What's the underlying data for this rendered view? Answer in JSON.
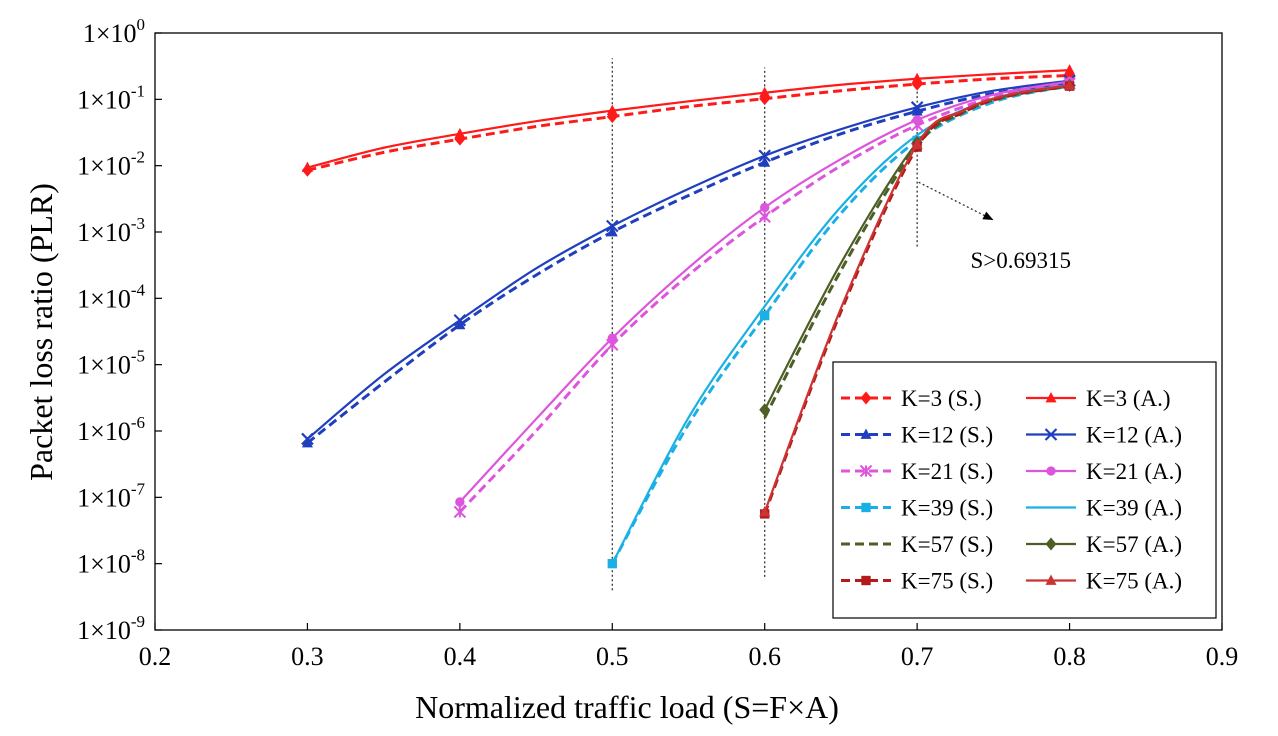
{
  "chart_data": {
    "type": "line",
    "title": "",
    "xlabel": "Normalized traffic load (S=F×A)",
    "ylabel": "Packet loss ratio (PLR)",
    "xlim": [
      0.2,
      0.9
    ],
    "ylim_log10": [
      -9,
      0
    ],
    "yscale": "log",
    "grid": false,
    "legend_position": "bottom-right",
    "x_ticks": [
      0.2,
      0.3,
      0.4,
      0.5,
      0.6,
      0.7,
      0.8,
      0.9
    ],
    "x_tick_labels": [
      "0.2",
      "0.3",
      "0.4",
      "0.5",
      "0.6",
      "0.7",
      "0.8",
      "0.9"
    ],
    "y_ticks": [
      {
        "exp": 0,
        "base": "1×10",
        "sup": "0"
      },
      {
        "exp": -1,
        "base": "1×10",
        "sup": "-1"
      },
      {
        "exp": -2,
        "base": "1×10",
        "sup": "-2"
      },
      {
        "exp": -3,
        "base": "1×10",
        "sup": "-3"
      },
      {
        "exp": -4,
        "base": "1×10",
        "sup": "-4"
      },
      {
        "exp": -5,
        "base": "1×10",
        "sup": "-5"
      },
      {
        "exp": -6,
        "base": "1×10",
        "sup": "-6"
      },
      {
        "exp": -7,
        "base": "1×10",
        "sup": "-7"
      },
      {
        "exp": -8,
        "base": "1×10",
        "sup": "-8"
      },
      {
        "exp": -9,
        "base": "1×10",
        "sup": "-9"
      }
    ],
    "vlines": [
      {
        "x": 0.5,
        "ylog_range": [
          -8.4,
          -0.38
        ]
      },
      {
        "x": 0.6,
        "ylog_range": [
          -8.2,
          -0.52
        ]
      },
      {
        "x": 0.7,
        "ylog_range": [
          -3.22,
          -0.68
        ]
      }
    ],
    "annotation": {
      "text": "S>0.69315",
      "from": [
        0.701,
        -2.25
      ],
      "to": [
        0.75,
        -2.82
      ],
      "text_at": [
        0.735,
        -3.42
      ]
    },
    "series": [
      {
        "name": "K=3 (S.)",
        "color": "#ff1a1a",
        "dash": true,
        "marker": "diamond",
        "x": [
          0.3,
          0.35,
          0.4,
          0.45,
          0.5,
          0.55,
          0.6,
          0.65,
          0.7,
          0.75,
          0.8
        ],
        "y": [
          -2.07,
          -1.8,
          -1.6,
          -1.41,
          -1.26,
          -1.11,
          -0.99,
          -0.87,
          -0.77,
          -0.69,
          -0.64
        ],
        "marker_x": [
          0.3,
          0.4,
          0.5,
          0.6,
          0.7,
          0.8
        ]
      },
      {
        "name": "K=3 (A.)",
        "color": "#ff1a1a",
        "dash": false,
        "marker": "triangle",
        "x": [
          0.3,
          0.35,
          0.4,
          0.45,
          0.5,
          0.55,
          0.6,
          0.65,
          0.7,
          0.75,
          0.8
        ],
        "y": [
          -2.03,
          -1.73,
          -1.52,
          -1.33,
          -1.17,
          -1.03,
          -0.9,
          -0.78,
          -0.69,
          -0.62,
          -0.56
        ],
        "marker_x": [
          0.3,
          0.4,
          0.5,
          0.6,
          0.7,
          0.8
        ]
      },
      {
        "name": "K=12 (S.)",
        "color": "#1f3fbf",
        "dash": true,
        "marker": "triangle",
        "x": [
          0.3,
          0.35,
          0.4,
          0.45,
          0.5,
          0.55,
          0.6,
          0.65,
          0.7,
          0.75,
          0.8
        ],
        "y": [
          -6.18,
          -5.27,
          -4.4,
          -3.65,
          -3.0,
          -2.45,
          -1.95,
          -1.52,
          -1.18,
          -0.91,
          -0.76
        ],
        "marker_x": [
          0.3,
          0.4,
          0.5,
          0.6,
          0.7,
          0.8
        ]
      },
      {
        "name": "K=12 (A.)",
        "color": "#1f3fbf",
        "dash": false,
        "marker": "x",
        "x": [
          0.3,
          0.35,
          0.4,
          0.45,
          0.5,
          0.55,
          0.6,
          0.65,
          0.7,
          0.75,
          0.8
        ],
        "y": [
          -6.12,
          -5.15,
          -4.33,
          -3.55,
          -2.91,
          -2.35,
          -1.85,
          -1.45,
          -1.12,
          -0.87,
          -0.72
        ],
        "marker_x": [
          0.3,
          0.4,
          0.5,
          0.6,
          0.7,
          0.8
        ]
      },
      {
        "name": "K=21 (S.)",
        "color": "#dd55dd",
        "dash": true,
        "marker": "asterisk",
        "x": [
          0.4,
          0.45,
          0.5,
          0.55,
          0.6,
          0.65,
          0.7,
          0.75,
          0.8
        ],
        "y": [
          -7.22,
          -6.0,
          -4.7,
          -3.65,
          -2.77,
          -2.0,
          -1.39,
          -0.97,
          -0.76
        ],
        "marker_x": [
          0.4,
          0.5,
          0.6,
          0.7,
          0.8
        ]
      },
      {
        "name": "K=21 (A.)",
        "color": "#dd55dd",
        "dash": false,
        "marker": "circle",
        "x": [
          0.4,
          0.45,
          0.5,
          0.55,
          0.6,
          0.65,
          0.7,
          0.75,
          0.8
        ],
        "y": [
          -7.07,
          -5.82,
          -4.6,
          -3.54,
          -2.63,
          -1.9,
          -1.31,
          -0.93,
          -0.73
        ],
        "marker_x": [
          0.4,
          0.5,
          0.6,
          0.7,
          0.8
        ]
      },
      {
        "name": "K=39 (S.)",
        "color": "#1ab0e6",
        "dash": true,
        "marker": "square",
        "x": [
          0.5,
          0.55,
          0.6,
          0.65,
          0.7,
          0.75,
          0.8
        ],
        "y": [
          -8.0,
          -5.9,
          -4.26,
          -2.72,
          -1.62,
          -1.04,
          -0.8
        ],
        "marker_x": [
          0.5,
          0.6,
          0.7,
          0.8
        ]
      },
      {
        "name": "K=39 (A.)",
        "color": "#1ab0e6",
        "dash": false,
        "marker": "none",
        "x": [
          0.5,
          0.55,
          0.6,
          0.65,
          0.7,
          0.75,
          0.8
        ],
        "y": [
          -8.0,
          -5.8,
          -4.12,
          -2.62,
          -1.54,
          -0.99,
          -0.78
        ],
        "marker_x": []
      },
      {
        "name": "K=57 (S.)",
        "color": "#4d5e26",
        "dash": true,
        "marker": "none",
        "x": [
          0.6,
          0.65,
          0.7,
          0.73,
          0.76,
          0.8
        ],
        "y": [
          -5.8,
          -3.58,
          -1.7,
          -1.2,
          -0.95,
          -0.8
        ],
        "marker_x": []
      },
      {
        "name": "K=57 (A.)",
        "color": "#4d5e26",
        "dash": false,
        "marker": "diamond",
        "x": [
          0.6,
          0.65,
          0.7,
          0.73,
          0.76,
          0.8
        ],
        "y": [
          -5.68,
          -3.47,
          -1.65,
          -1.17,
          -0.94,
          -0.79
        ],
        "marker_x": [
          0.6,
          0.7,
          0.8
        ]
      },
      {
        "name": "K=75 (S.)",
        "color": "#b31a1a",
        "dash": true,
        "marker": "square",
        "x": [
          0.6,
          0.65,
          0.7,
          0.73,
          0.76,
          0.8
        ],
        "y": [
          -7.25,
          -4.2,
          -1.72,
          -1.2,
          -0.95,
          -0.8
        ],
        "marker_x": [
          0.6,
          0.7,
          0.8
        ]
      },
      {
        "name": "K=75 (A.)",
        "color": "#cc3333",
        "dash": false,
        "marker": "triangle",
        "x": [
          0.6,
          0.65,
          0.7,
          0.73,
          0.76,
          0.8
        ],
        "y": [
          -7.22,
          -4.15,
          -1.68,
          -1.17,
          -0.93,
          -0.79
        ],
        "marker_x": [
          0.6,
          0.7,
          0.8
        ]
      }
    ]
  }
}
